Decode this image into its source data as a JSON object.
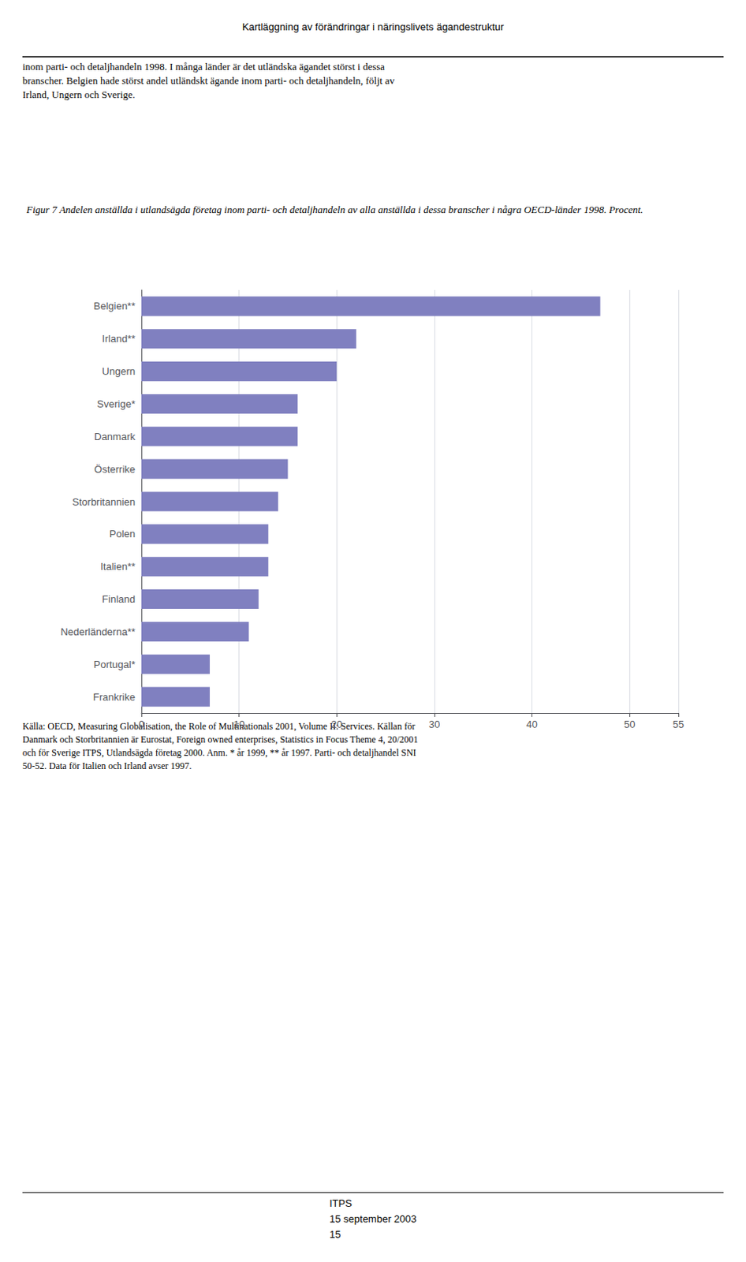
{
  "chart_data": {
    "type": "bar",
    "orientation": "horizontal",
    "title": "Figur 7 Andelen anställda i utlandsägda företag inom parti- och detaljhandeln av alla anställda i dessa branscher i några OECD-länder 1998. Procent.",
    "categories": [
      "Belgien**",
      "Irland**",
      "Ungern",
      "Sverige*",
      "Danmark",
      "Österrike",
      "Storbritannien",
      "Polen",
      "Italien**",
      "Finland",
      "Nederländerna**",
      "Portugal*",
      "Frankrike"
    ],
    "values": [
      47,
      22,
      20,
      16,
      16,
      15,
      14,
      13,
      13,
      12,
      11,
      7,
      7
    ],
    "color": "#8080c0",
    "xlim": [
      0,
      55
    ],
    "xticks": [
      0,
      10,
      20,
      30,
      40,
      50
    ],
    "grid": true
  },
  "page_text": {
    "header": "Kartläggning av förändringar i näringslivets ägandestruktur",
    "body": [
      "inom parti- och detaljhandeln 1998. I många länder är det utländska ägandet störst i dessa",
      "branscher. Belgien hade störst andel utländskt ägande inom parti- och detaljhandeln, följt av",
      "Irland, Ungern och Sverige."
    ],
    "footer": [
      "Källa: OECD, Measuring Globalisation, the Role of Multinationals 2001, Volume II: Services. Källan för",
      "Danmark och Storbritannien är Eurostat, Foreign owned enterprises, Statistics in Focus Theme 4, 20/2001",
      "och för Sverige ITPS, Utlandsägda företag 2000. Anm. * år 1999, ** år 1997. Parti- och detaljhandel SNI",
      "50-52. Data för Italien och Irland avser 1997."
    ],
    "page_footer": [
      "ITPS",
      "15 september 2003",
      "15"
    ]
  }
}
